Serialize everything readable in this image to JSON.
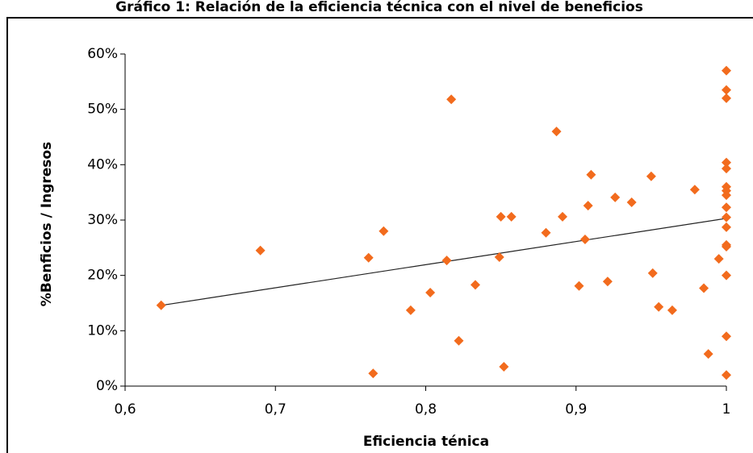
{
  "chart_data": {
    "type": "scatter",
    "title": "Gráfico 1: Relación de la eficiencia técnica con el nivel de beneficios",
    "x_label": "Eficiencia ténica",
    "y_label": "%Benficios / Ingresos",
    "xlim": [
      0.6,
      1
    ],
    "ylim": [
      0,
      60
    ],
    "xticks": [
      {
        "value": 0.6,
        "label": "0,6"
      },
      {
        "value": 0.7,
        "label": "0,7"
      },
      {
        "value": 0.8,
        "label": "0,8"
      },
      {
        "value": 0.9,
        "label": "0,9"
      },
      1
    ],
    "yticks": [
      {
        "value": 0,
        "label": "0%"
      },
      {
        "value": 10,
        "label": "10%"
      },
      {
        "value": 20,
        "label": "20%"
      },
      {
        "value": 30,
        "label": "30%"
      },
      {
        "value": 40,
        "label": "40%"
      },
      {
        "value": 50,
        "label": "50%"
      },
      {
        "value": 60,
        "label": "60%"
      }
    ],
    "grid": false,
    "color": "#f26b1d",
    "x": [
      0.624,
      0.69,
      0.765,
      0.762,
      0.772,
      0.79,
      0.803,
      0.814,
      0.817,
      0.822,
      0.833,
      0.849,
      0.85,
      0.852,
      0.857,
      0.88,
      0.887,
      0.891,
      0.902,
      0.906,
      0.908,
      0.91,
      0.921,
      0.926,
      0.937,
      0.95,
      0.951,
      0.955,
      0.964,
      0.979,
      0.995,
      0.985,
      0.988,
      1,
      1,
      1,
      1,
      1,
      1,
      1,
      1,
      1,
      1,
      1,
      1,
      1,
      1,
      1,
      1
    ],
    "values": [
      14.6,
      24.5,
      2.3,
      23.2,
      28.0,
      13.7,
      16.9,
      22.7,
      51.8,
      8.2,
      18.3,
      23.3,
      30.6,
      3.5,
      30.6,
      27.7,
      46.0,
      30.6,
      18.1,
      26.5,
      32.6,
      38.2,
      18.9,
      34.1,
      33.2,
      37.9,
      20.4,
      14.3,
      13.7,
      35.5,
      23.0,
      17.7,
      5.8,
      57.0,
      53.5,
      52.0,
      40.4,
      39.3,
      36.0,
      35.3,
      34.5,
      32.3,
      30.5,
      28.7,
      25.5,
      25.2,
      20.0,
      9.0,
      2.0
    ],
    "trendline": {
      "x": [
        0.622,
        1
      ],
      "values": [
        14.5,
        30.3
      ]
    }
  }
}
